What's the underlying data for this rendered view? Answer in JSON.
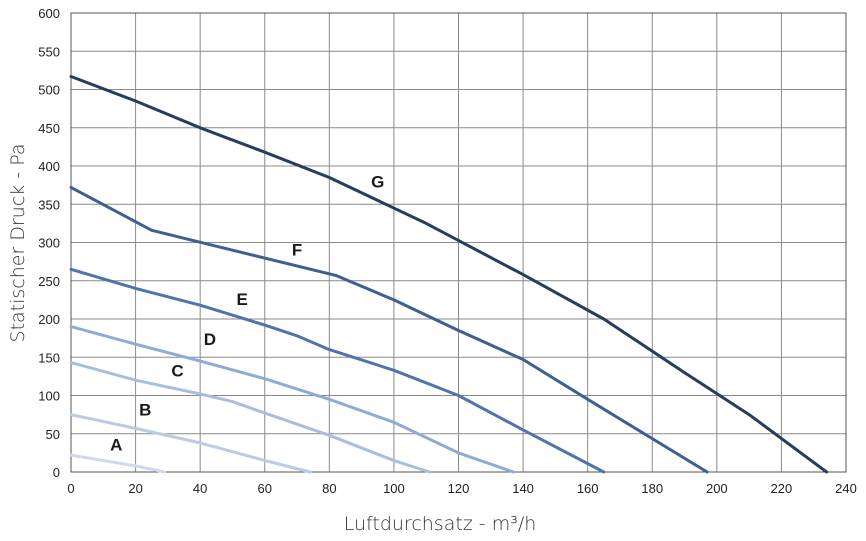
{
  "chart_data": {
    "type": "line",
    "xlabel": "Luftdurchsatz - m³/h",
    "ylabel": "Statischer Druck - Pa",
    "xlim": [
      0,
      240
    ],
    "ylim": [
      0,
      600
    ],
    "x_ticks": [
      0,
      20,
      40,
      60,
      80,
      100,
      120,
      140,
      160,
      180,
      200,
      220,
      240
    ],
    "y_ticks": [
      0,
      50,
      100,
      150,
      200,
      250,
      300,
      350,
      400,
      450,
      500,
      550,
      600
    ],
    "grid": true,
    "legend": "none",
    "series": [
      {
        "name": "A",
        "color": "#cfd9ea",
        "x": [
          0,
          10,
          20,
          29
        ],
        "y": [
          22,
          15,
          8,
          0
        ],
        "label_at": [
          14,
          28
        ]
      },
      {
        "name": "B",
        "color": "#bccbe3",
        "x": [
          0,
          20,
          40,
          60,
          74
        ],
        "y": [
          75,
          57,
          38,
          15,
          0
        ],
        "label_at": [
          23,
          74
        ]
      },
      {
        "name": "C",
        "color": "#a9bddd",
        "x": [
          0,
          20,
          40,
          50,
          60,
          80,
          100,
          111
        ],
        "y": [
          143,
          120,
          102,
          92,
          77,
          48,
          15,
          0
        ],
        "label_at": [
          33,
          125
        ]
      },
      {
        "name": "D",
        "color": "#8eaad6",
        "x": [
          0,
          20,
          40,
          60,
          80,
          100,
          120,
          137
        ],
        "y": [
          190,
          167,
          145,
          122,
          95,
          65,
          25,
          0
        ],
        "label_at": [
          43,
          166
        ]
      },
      {
        "name": "E",
        "color": "#4e73ad",
        "x": [
          0,
          20,
          40,
          60,
          70,
          80,
          100,
          120,
          140,
          165
        ],
        "y": [
          265,
          240,
          218,
          192,
          178,
          160,
          133,
          100,
          55,
          0
        ],
        "label_at": [
          53,
          218
        ]
      },
      {
        "name": "F",
        "color": "#3c5f94",
        "x": [
          0,
          25,
          50,
          82,
          100,
          120,
          140,
          160,
          197
        ],
        "y": [
          372,
          316,
          290,
          257,
          225,
          185,
          147,
          95,
          0
        ],
        "label_at": [
          70,
          283
        ]
      },
      {
        "name": "G",
        "color": "#263e5e",
        "x": [
          0,
          20,
          40,
          60,
          80,
          110,
          140,
          165,
          190,
          210,
          234
        ],
        "y": [
          517,
          485,
          450,
          418,
          385,
          325,
          258,
          200,
          130,
          75,
          0
        ],
        "label_at": [
          95,
          372
        ]
      }
    ]
  }
}
